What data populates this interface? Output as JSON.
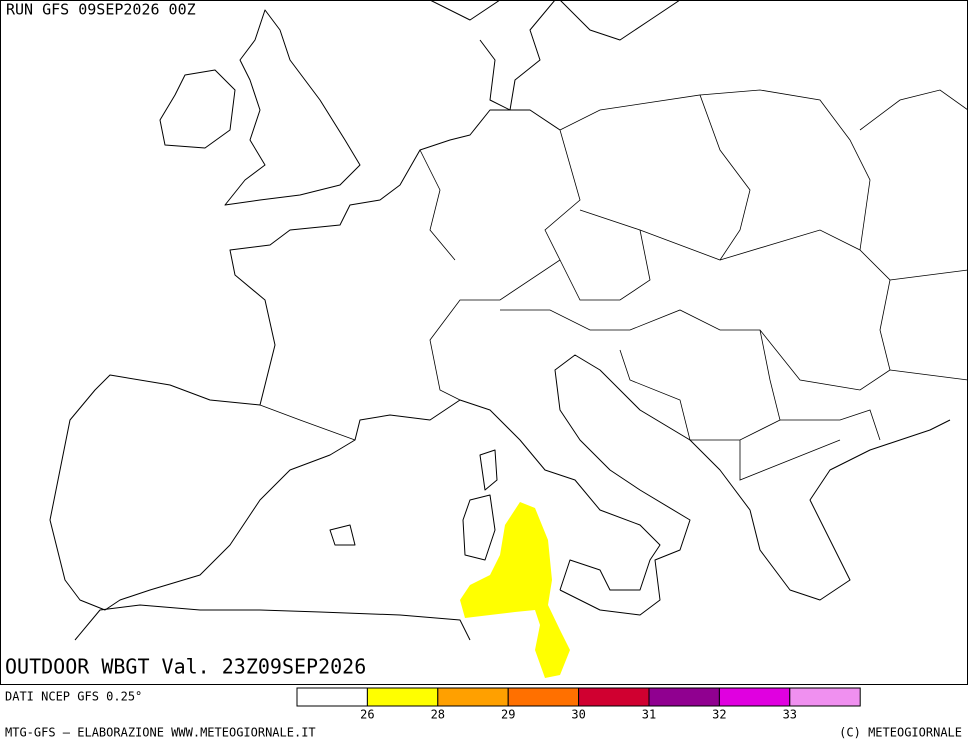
{
  "header": {
    "run": "RUN GFS 09SEP2026 00Z"
  },
  "map": {
    "title": "OUTDOOR WBGT Val. 23Z09SEP2026",
    "highlight_color": "#ffff00"
  },
  "legend": {
    "source": "DATI NCEP GFS 0.25°",
    "colors": [
      "#ffffff",
      "#ffff00",
      "#ffa000",
      "#ff7000",
      "#d00030",
      "#900090",
      "#e000e0",
      "#f090f0"
    ],
    "ticks": [
      26,
      28,
      29,
      30,
      31,
      32,
      33
    ]
  },
  "footer": {
    "left": "MTG-GFS — ELABORAZIONE WWW.METEOGIORNALE.IT",
    "right": "(C) METEOGIORNALE"
  }
}
